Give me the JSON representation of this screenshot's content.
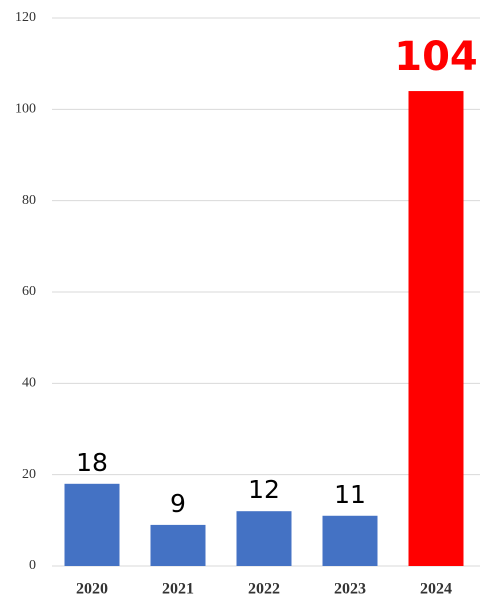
{
  "chart_data": {
    "type": "bar",
    "categories": [
      "2020",
      "2021",
      "2022",
      "2023",
      "2024"
    ],
    "values": [
      18,
      9,
      12,
      11,
      104
    ],
    "color": "#4472c4",
    "colors": [
      "#4472c4",
      "#4472c4",
      "#4472c4",
      "#4472c4",
      "#ff0000"
    ],
    "ylim": [
      0,
      120
    ],
    "yticks": [
      0,
      20,
      40,
      60,
      80,
      100,
      120
    ],
    "grid": true
  }
}
